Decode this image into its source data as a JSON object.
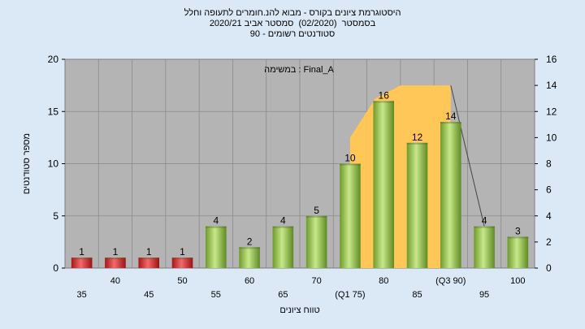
{
  "chart_data": {
    "type": "bar",
    "title_lines": [
      "היסטוגרמת ציונים בקורס - מבוא להנ.חומרים לתעופה וחלל",
      "בסמסטר  (02/2020)  סמסטר אביב 2020/21",
      "סטודנטים רשומים - 90"
    ],
    "annotation": "במשימה : Final_A",
    "ylabel": "מספר סטודנטים",
    "xlabel": "טווח ציונים",
    "categories": [
      "35",
      "40",
      "45",
      "50",
      "55",
      "60",
      "65",
      "70",
      "75",
      "80",
      "85",
      "90",
      "95",
      "100"
    ],
    "category_labels": [
      "35",
      "40",
      "45",
      "50",
      "55",
      "60",
      "65",
      "70",
      "(Q1 75)",
      "80",
      "85",
      "(Q3 90)",
      "95",
      "100"
    ],
    "values": [
      1,
      1,
      1,
      1,
      4,
      2,
      4,
      5,
      10,
      16,
      12,
      14,
      4,
      3
    ],
    "bar_colors": [
      "#d42828",
      "#d42828",
      "#d42828",
      "#d42828",
      "#8cc63e",
      "#8cc63e",
      "#8cc63e",
      "#8cc63e",
      "#8cc63e",
      "#8cc63e",
      "#8cc63e",
      "#8cc63e",
      "#8cc63e",
      "#8cc63e"
    ],
    "ylim": [
      0,
      20
    ],
    "yticks": [
      0,
      5,
      10,
      15,
      20
    ],
    "y2lim": [
      0,
      16
    ],
    "y2ticks": [
      0,
      2,
      4,
      6,
      8,
      10,
      12,
      14,
      16
    ],
    "iqr_range": [
      "75",
      "90"
    ],
    "iqr_area_right_values": [
      10,
      13,
      14,
      14,
      14
    ],
    "line_from_value": 14,
    "grid": true,
    "plot_background": "#b4b4b4",
    "area_color": "#ffc658"
  }
}
